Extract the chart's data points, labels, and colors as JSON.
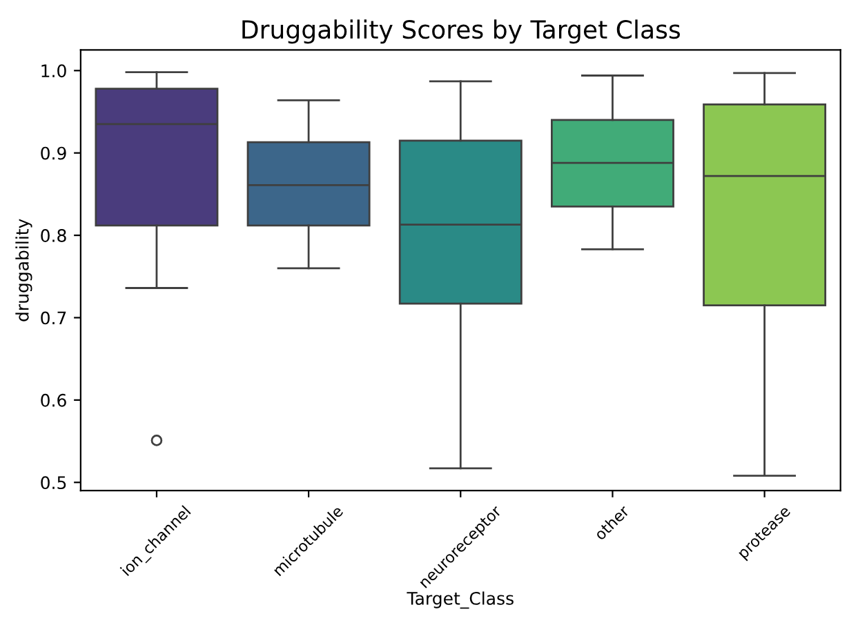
{
  "chart_data": {
    "type": "box",
    "title": "Druggability Scores by Target Class",
    "xlabel": "Target_Class",
    "ylabel": "druggability",
    "categories": [
      "ion_channel",
      "microtubule",
      "neuroreceptor",
      "other",
      "protease"
    ],
    "colors": [
      "#4a3c7d",
      "#3c668a",
      "#2a8a86",
      "#41ab78",
      "#8cc752"
    ],
    "boxes": [
      {
        "low": 0.736,
        "q1": 0.812,
        "median": 0.935,
        "q3": 0.978,
        "high": 0.998,
        "outliers": [
          0.551
        ]
      },
      {
        "low": 0.76,
        "q1": 0.812,
        "median": 0.861,
        "q3": 0.913,
        "high": 0.964
      },
      {
        "low": 0.517,
        "q1": 0.717,
        "median": 0.813,
        "q3": 0.915,
        "high": 0.987
      },
      {
        "low": 0.783,
        "q1": 0.835,
        "median": 0.888,
        "q3": 0.94,
        "high": 0.994
      },
      {
        "low": 0.508,
        "q1": 0.715,
        "median": 0.872,
        "q3": 0.959,
        "high": 0.997
      }
    ],
    "ylim": [
      0.49,
      1.025
    ],
    "yticks": [
      0.5,
      0.6,
      0.7,
      0.8,
      0.9,
      {
        "value": 1.0,
        "label": "1.0"
      }
    ],
    "grid": false,
    "legend": false
  }
}
